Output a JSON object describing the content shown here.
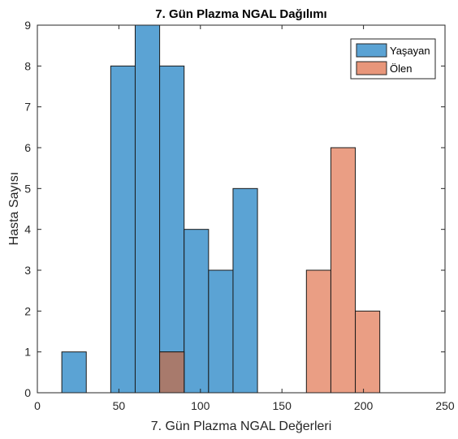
{
  "chart_data": {
    "type": "bar",
    "title": "7. Gün Plazma NGAL Dağılımı",
    "xlabel": "7. Gün Plazma NGAL Değerleri",
    "ylabel": "Hasta Sayısı",
    "xlim": [
      0,
      250
    ],
    "ylim": [
      0,
      9
    ],
    "xticks": [
      0,
      50,
      100,
      150,
      200,
      250
    ],
    "yticks": [
      0,
      1,
      2,
      3,
      4,
      5,
      6,
      7,
      8,
      9
    ],
    "grid": false,
    "legend_position": "top-right",
    "series": [
      {
        "name": "Yaşayan",
        "color": "#5BA3D4",
        "bins": [
          {
            "x0": 15,
            "x1": 30,
            "count": 1
          },
          {
            "x0": 45,
            "x1": 60,
            "count": 8
          },
          {
            "x0": 60,
            "x1": 75,
            "count": 9
          },
          {
            "x0": 75,
            "x1": 90,
            "count": 8
          },
          {
            "x0": 90,
            "x1": 105,
            "count": 4
          },
          {
            "x0": 105,
            "x1": 120,
            "count": 3
          },
          {
            "x0": 120,
            "x1": 135,
            "count": 5
          }
        ]
      },
      {
        "name": "Ölen",
        "color": "#E8967A",
        "bins": [
          {
            "x0": 75,
            "x1": 90,
            "count": 1
          },
          {
            "x0": 165,
            "x1": 180,
            "count": 3
          },
          {
            "x0": 180,
            "x1": 195,
            "count": 6
          },
          {
            "x0": 195,
            "x1": 210,
            "count": 2
          }
        ]
      }
    ],
    "overlap_color": "#A87A6C"
  }
}
